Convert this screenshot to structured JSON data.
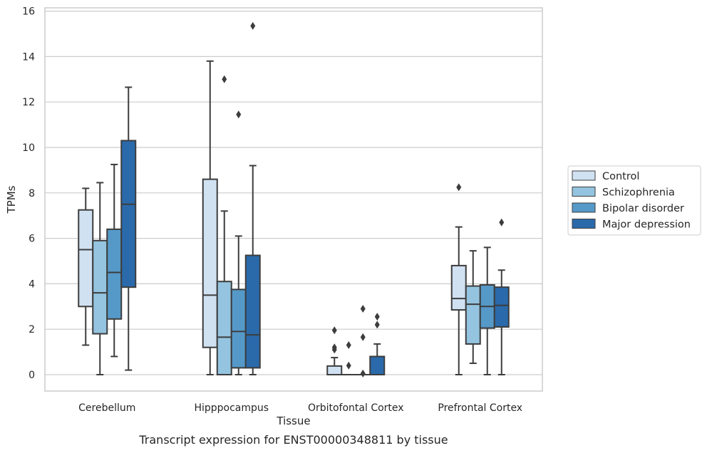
{
  "chart_data": {
    "type": "box",
    "caption": "Transcript expression for ENST00000348811 by tissue",
    "xlabel": "Tissue",
    "ylabel": "TPMs",
    "ylim": [
      -0.7,
      16.2
    ],
    "yticks": [
      0,
      2,
      4,
      6,
      8,
      10,
      12,
      14,
      16
    ],
    "grid": true,
    "legend_position": "right",
    "categories": [
      "Cerebellum",
      "Hipppocampus",
      "Orbitofontal Cortex",
      "Prefrontal Cortex"
    ],
    "series": [
      {
        "name": "Control",
        "color": "#d0e1f2",
        "boxes": [
          {
            "whislo": 1.3,
            "q1": 3.0,
            "med": 5.5,
            "q3": 7.25,
            "whishi": 8.2,
            "fliers": []
          },
          {
            "whislo": 0.0,
            "q1": 1.2,
            "med": 3.5,
            "q3": 8.6,
            "whishi": 13.8,
            "fliers": []
          },
          {
            "whislo": 0.0,
            "q1": 0.0,
            "med": 0.0,
            "q3": 0.38,
            "whishi": 0.75,
            "fliers": [
              1.1,
              1.2,
              1.95
            ]
          },
          {
            "whislo": 0.0,
            "q1": 2.85,
            "med": 3.35,
            "q3": 4.8,
            "whishi": 6.5,
            "fliers": [
              8.25
            ]
          }
        ]
      },
      {
        "name": "Schizophrenia",
        "color": "#94c4df",
        "boxes": [
          {
            "whislo": 0.0,
            "q1": 1.8,
            "med": 3.6,
            "q3": 5.9,
            "whishi": 8.45,
            "fliers": []
          },
          {
            "whislo": 0.0,
            "q1": 0.0,
            "med": 1.65,
            "q3": 4.1,
            "whishi": 7.2,
            "fliers": [
              13.0
            ]
          },
          {
            "whislo": 0.0,
            "q1": 0.0,
            "med": 0.0,
            "q3": 0.0,
            "whishi": 0.0,
            "fliers": [
              0.4,
              1.3
            ]
          },
          {
            "whislo": 0.5,
            "q1": 1.35,
            "med": 3.1,
            "q3": 3.9,
            "whishi": 5.45,
            "fliers": []
          }
        ]
      },
      {
        "name": "Bipolar disorder",
        "color": "#5599c8",
        "boxes": [
          {
            "whislo": 0.8,
            "q1": 2.45,
            "med": 4.5,
            "q3": 6.4,
            "whishi": 9.25,
            "fliers": []
          },
          {
            "whislo": 0.0,
            "q1": 0.3,
            "med": 1.9,
            "q3": 3.75,
            "whishi": 6.1,
            "fliers": [
              11.45
            ]
          },
          {
            "whislo": 0.0,
            "q1": 0.0,
            "med": 0.0,
            "q3": 0.0,
            "whishi": 0.0,
            "fliers": [
              0.05,
              1.65,
              2.9
            ]
          },
          {
            "whislo": 0.0,
            "q1": 2.05,
            "med": 3.0,
            "q3": 3.95,
            "whishi": 5.6,
            "fliers": []
          }
        ]
      },
      {
        "name": "Major depression",
        "color": "#2a6aab",
        "boxes": [
          {
            "whislo": 0.2,
            "q1": 3.85,
            "med": 7.5,
            "q3": 10.3,
            "whishi": 12.65,
            "fliers": []
          },
          {
            "whislo": 0.0,
            "q1": 0.3,
            "med": 1.75,
            "q3": 5.25,
            "whishi": 9.2,
            "fliers": [
              15.35
            ]
          },
          {
            "whislo": 0.0,
            "q1": 0.0,
            "med": 0.0,
            "q3": 0.8,
            "whishi": 1.35,
            "fliers": [
              2.2,
              2.55
            ]
          },
          {
            "whislo": 0.0,
            "q1": 2.1,
            "med": 3.05,
            "q3": 3.85,
            "whishi": 4.6,
            "fliers": [
              6.7
            ]
          }
        ]
      }
    ]
  }
}
